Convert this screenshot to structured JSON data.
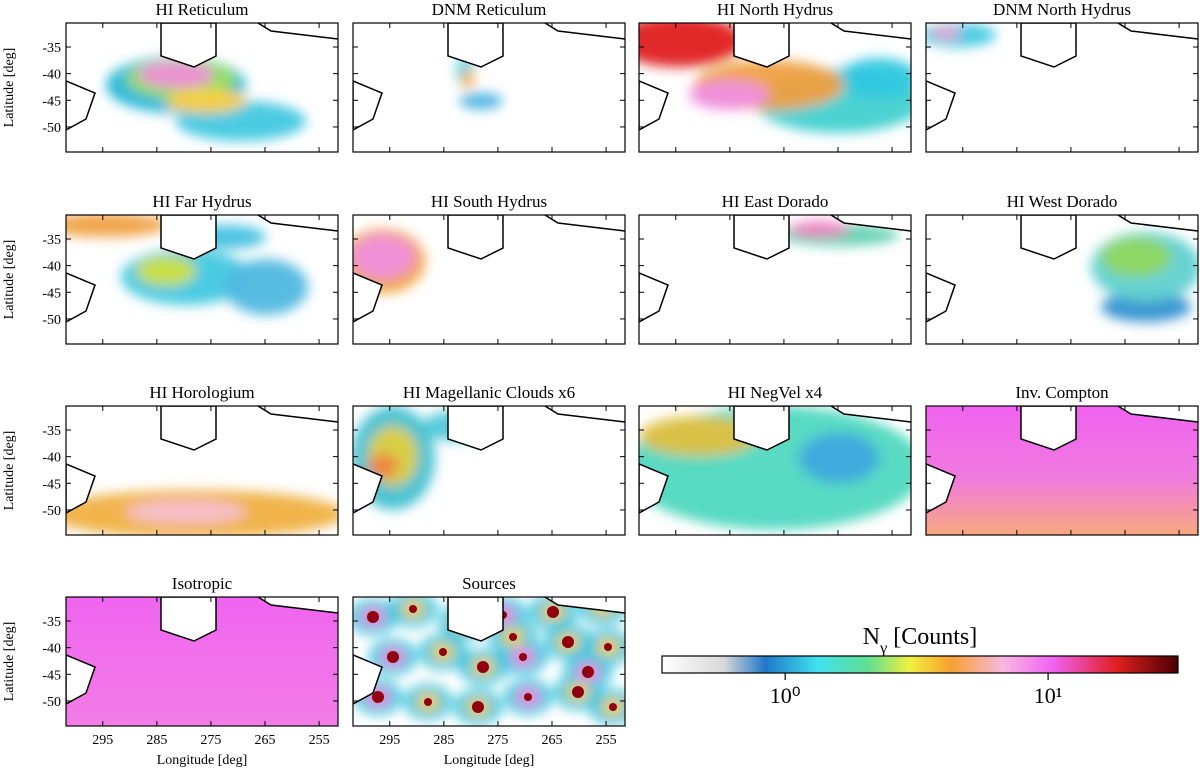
{
  "chart_data": [
    {
      "type": "heatmap",
      "title": "HI Reticulum",
      "ylabel": "Latitude [deg]",
      "xlim": [
        301.8,
        251.5
      ],
      "ylim": [
        -54.7,
        -30.5
      ],
      "xticks": [
        295,
        285,
        275,
        265,
        255
      ],
      "yticks": [
        -35,
        -40,
        -45,
        -50
      ]
    },
    {
      "type": "heatmap",
      "title": "DNM Reticulum",
      "xlim": [
        301.8,
        251.5
      ],
      "ylim": [
        -54.7,
        -30.5
      ],
      "xticks": [
        295,
        285,
        275,
        265,
        255
      ],
      "yticks": [
        -35,
        -40,
        -45,
        -50
      ]
    },
    {
      "type": "heatmap",
      "title": "HI North Hydrus",
      "xlim": [
        301.8,
        251.5
      ],
      "ylim": [
        -54.7,
        -30.5
      ],
      "xticks": [
        295,
        285,
        275,
        265,
        255
      ],
      "yticks": [
        -35,
        -40,
        -45,
        -50
      ]
    },
    {
      "type": "heatmap",
      "title": "DNM North Hydrus",
      "xlim": [
        301.8,
        251.5
      ],
      "ylim": [
        -54.7,
        -30.5
      ],
      "xticks": [
        295,
        285,
        275,
        265,
        255
      ],
      "yticks": [
        -35,
        -40,
        -45,
        -50
      ]
    },
    {
      "type": "heatmap",
      "title": "HI Far Hydrus",
      "ylabel": "Latitude [deg]",
      "xlim": [
        301.8,
        251.5
      ],
      "ylim": [
        -54.7,
        -30.5
      ],
      "xticks": [
        295,
        285,
        275,
        265,
        255
      ],
      "yticks": [
        -35,
        -40,
        -45,
        -50
      ]
    },
    {
      "type": "heatmap",
      "title": "HI South Hydrus",
      "xlim": [
        301.8,
        251.5
      ],
      "ylim": [
        -54.7,
        -30.5
      ],
      "xticks": [
        295,
        285,
        275,
        265,
        255
      ],
      "yticks": [
        -35,
        -40,
        -45,
        -50
      ]
    },
    {
      "type": "heatmap",
      "title": "HI East Dorado",
      "xlim": [
        301.8,
        251.5
      ],
      "ylim": [
        -54.7,
        -30.5
      ],
      "xticks": [
        295,
        285,
        275,
        265,
        255
      ],
      "yticks": [
        -35,
        -40,
        -45,
        -50
      ]
    },
    {
      "type": "heatmap",
      "title": "HI West Dorado",
      "xlim": [
        301.8,
        251.5
      ],
      "ylim": [
        -54.7,
        -30.5
      ],
      "xticks": [
        295,
        285,
        275,
        265,
        255
      ],
      "yticks": [
        -35,
        -40,
        -45,
        -50
      ]
    },
    {
      "type": "heatmap",
      "title": "HI Horologium",
      "ylabel": "Latitude [deg]",
      "xlim": [
        301.8,
        251.5
      ],
      "ylim": [
        -54.7,
        -30.5
      ],
      "xticks": [
        295,
        285,
        275,
        265,
        255
      ],
      "yticks": [
        -35,
        -40,
        -45,
        -50
      ]
    },
    {
      "type": "heatmap",
      "title": "HI Magellanic Clouds x6",
      "xlim": [
        301.8,
        251.5
      ],
      "ylim": [
        -54.7,
        -30.5
      ],
      "xticks": [
        295,
        285,
        275,
        265,
        255
      ],
      "yticks": [
        -35,
        -40,
        -45,
        -50
      ]
    },
    {
      "type": "heatmap",
      "title": "HI NegVel x4",
      "xlim": [
        301.8,
        251.5
      ],
      "ylim": [
        -54.7,
        -30.5
      ],
      "xticks": [
        295,
        285,
        275,
        265,
        255
      ],
      "yticks": [
        -35,
        -40,
        -45,
        -50
      ]
    },
    {
      "type": "heatmap",
      "title": "Inv. Compton",
      "xlim": [
        301.8,
        251.5
      ],
      "ylim": [
        -54.7,
        -30.5
      ],
      "xticks": [
        295,
        285,
        275,
        265,
        255
      ],
      "yticks": [
        -35,
        -40,
        -45,
        -50
      ]
    },
    {
      "type": "heatmap",
      "title": "Isotropic",
      "ylabel": "Latitude [deg]",
      "xlabel": "Longitude [deg]",
      "xlim": [
        301.8,
        251.5
      ],
      "ylim": [
        -54.7,
        -30.5
      ],
      "xticks": [
        295,
        285,
        275,
        265,
        255
      ],
      "yticks": [
        -35,
        -40,
        -45,
        -50
      ]
    },
    {
      "type": "heatmap",
      "title": "Sources",
      "xlabel": "Longitude [deg]",
      "xlim": [
        301.8,
        251.5
      ],
      "ylim": [
        -54.7,
        -30.5
      ],
      "xticks": [
        295,
        285,
        275,
        265,
        255
      ],
      "yticks": [
        -35,
        -40,
        -45,
        -50
      ]
    },
    {
      "type": "colorbar",
      "label_symbol": "N",
      "label_sub": "γ",
      "label_unit": "[Counts]",
      "log": true,
      "lim": [
        0.34,
        31.2
      ],
      "ticks": [
        {
          "value": 1,
          "label": "10⁰"
        },
        {
          "value": 10,
          "label": "10¹"
        }
      ]
    }
  ]
}
